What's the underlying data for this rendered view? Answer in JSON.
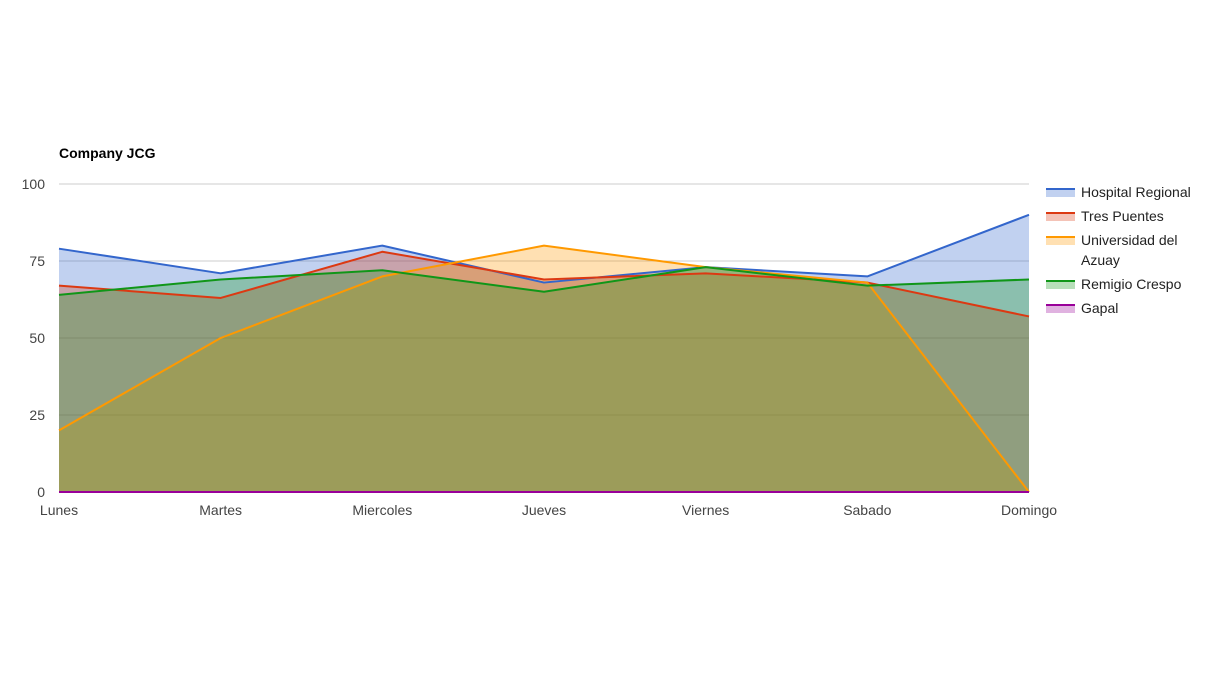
{
  "chart_data": {
    "type": "area",
    "title": "Company JCG",
    "xlabel": "",
    "ylabel": "",
    "categories": [
      "Lunes",
      "Martes",
      "Miercoles",
      "Jueves",
      "Viernes",
      "Sabado",
      "Domingo"
    ],
    "ylim": [
      0,
      100
    ],
    "yticks": [
      0,
      25,
      50,
      75,
      100
    ],
    "grid": true,
    "legend_position": "right",
    "series": [
      {
        "name": "Hospital Regional",
        "color": "#3366cc",
        "values": [
          79,
          71,
          80,
          68,
          73,
          70,
          90
        ]
      },
      {
        "name": "Tres Puentes",
        "color": "#dc3912",
        "values": [
          67,
          63,
          78,
          69,
          71,
          68,
          57
        ]
      },
      {
        "name": "Universidad del Azuay",
        "legend_lines": [
          "Universidad del",
          "Azuay"
        ],
        "color": "#ff9900",
        "values": [
          20,
          50,
          70,
          80,
          73,
          68,
          0
        ]
      },
      {
        "name": "Remigio Crespo",
        "color": "#109618",
        "values": [
          64,
          69,
          72,
          65,
          73,
          67,
          69
        ]
      },
      {
        "name": "Gapal",
        "color": "#990099",
        "values": [
          0,
          0,
          0,
          0,
          0,
          0,
          0
        ]
      }
    ]
  }
}
